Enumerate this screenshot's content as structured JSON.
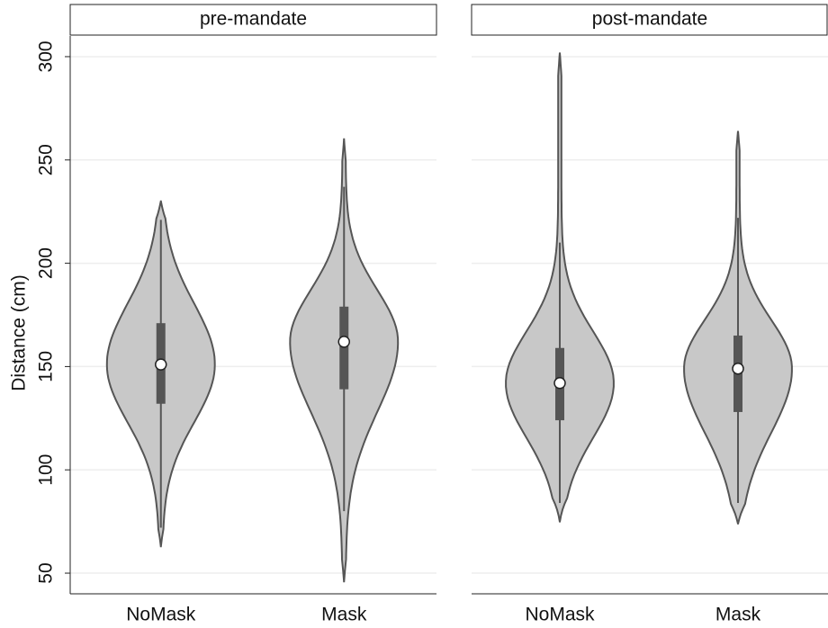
{
  "chart_data": [
    {
      "type": "violin",
      "title": "pre-mandate",
      "ylabel": "Distance (cm)",
      "categories": [
        "NoMask",
        "Mask"
      ],
      "min": [
        63,
        46
      ],
      "whisker_low": [
        72,
        80
      ],
      "q1": [
        132,
        139
      ],
      "median": [
        151,
        162
      ],
      "q3": [
        171,
        179
      ],
      "whisker_high": [
        221,
        237
      ],
      "max": [
        230,
        260
      ],
      "color": "#c8c8c8",
      "box_color": "#555555",
      "ylim": [
        40,
        310
      ],
      "yticks": [
        50,
        100,
        150,
        200,
        250,
        300
      ],
      "grid": true,
      "ytick_labels": true
    },
    {
      "type": "violin",
      "title": "post-mandate",
      "categories": [
        "NoMask",
        "Mask"
      ],
      "min": [
        75,
        74
      ],
      "whisker_low": [
        84,
        84
      ],
      "q1": [
        124,
        128
      ],
      "median": [
        142,
        149
      ],
      "q3": [
        159,
        165
      ],
      "whisker_high": [
        210,
        222
      ],
      "max": [
        302,
        264
      ],
      "color": "#c8c8c8",
      "box_color": "#555555",
      "ylim": [
        40,
        310
      ],
      "yticks": [
        50,
        100,
        150,
        200,
        250,
        300
      ],
      "grid": true,
      "ytick_labels": false
    }
  ]
}
